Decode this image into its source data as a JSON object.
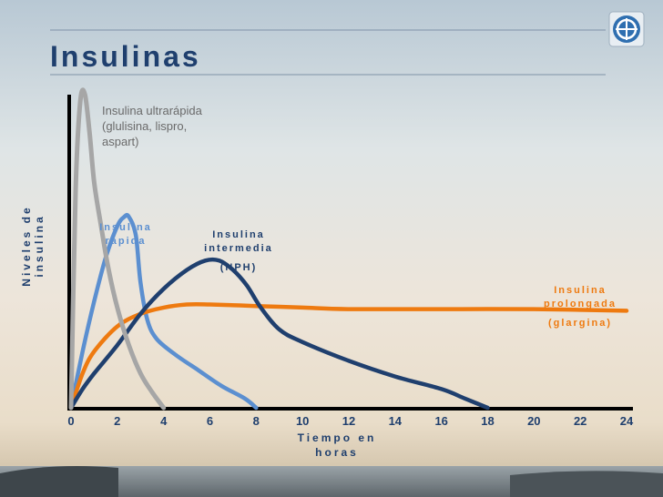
{
  "slide": {
    "title": "Insulinas",
    "logo_icon": "circle-emblem-icon"
  },
  "colors": {
    "ultra": "#a6a6a6",
    "rapida": "#5b8fd0",
    "intermedia": "#1f3f6e",
    "prolongada": "#ee7a10",
    "title": "#1f3f6e"
  },
  "chart_data": {
    "type": "line",
    "title": "",
    "xlabel": "Tiempo en horas",
    "ylabel": "Niveles de insulina",
    "xlim": [
      0,
      24
    ],
    "ylim": [
      0,
      100
    ],
    "xticks": [
      "0",
      "2",
      "4",
      "6",
      "8",
      "10",
      "12",
      "14",
      "16",
      "18",
      "20",
      "22",
      "24"
    ],
    "grid": false,
    "legend": "none",
    "annotations": {
      "ultra": "Insulina ultrarápida (glulisina, lispro, aspart)",
      "rapida": "Insulina rápida",
      "intermedia": "Insulina intermedia",
      "intermedia_sub": "(NPH)",
      "prolongada": "Insulina prolongada",
      "prolongada_sub": "(glargina)"
    },
    "series": [
      {
        "key": "ultra",
        "x": [
          0,
          0.2,
          0.4,
          0.6,
          0.8,
          1.0,
          1.3,
          1.6,
          2.0,
          2.5,
          3.0,
          3.5,
          4.0
        ],
        "y": [
          0,
          70,
          98,
          100,
          88,
          72,
          58,
          45,
          32,
          20,
          11,
          5,
          0
        ]
      },
      {
        "key": "rapida",
        "x": [
          0,
          0.5,
          1.0,
          1.5,
          2.0,
          2.3,
          2.5,
          2.8,
          3.0,
          3.3,
          3.7,
          4.5,
          5.5,
          6.5,
          7.5,
          8.0
        ],
        "y": [
          0,
          18,
          34,
          48,
          58,
          61,
          61,
          55,
          40,
          28,
          22,
          17,
          12,
          7,
          3,
          0
        ]
      },
      {
        "key": "intermedia",
        "x": [
          0,
          0.5,
          1,
          2,
          3,
          4,
          5,
          5.8,
          6.4,
          7,
          7.6,
          8.2,
          9,
          10,
          12,
          14,
          16,
          17,
          18
        ],
        "y": [
          0,
          6,
          11,
          20,
          30,
          38,
          44,
          47,
          47,
          44,
          39,
          32,
          25,
          21,
          15,
          10,
          6,
          3,
          0
        ]
      },
      {
        "key": "prolongada",
        "x": [
          0,
          0.5,
          1,
          2,
          3,
          4,
          5,
          6,
          8,
          10,
          12,
          16,
          20,
          24
        ],
        "y": [
          0,
          11,
          18,
          26,
          30,
          32,
          33,
          33,
          32.5,
          32,
          31.5,
          31.5,
          31.5,
          31
        ]
      }
    ]
  }
}
